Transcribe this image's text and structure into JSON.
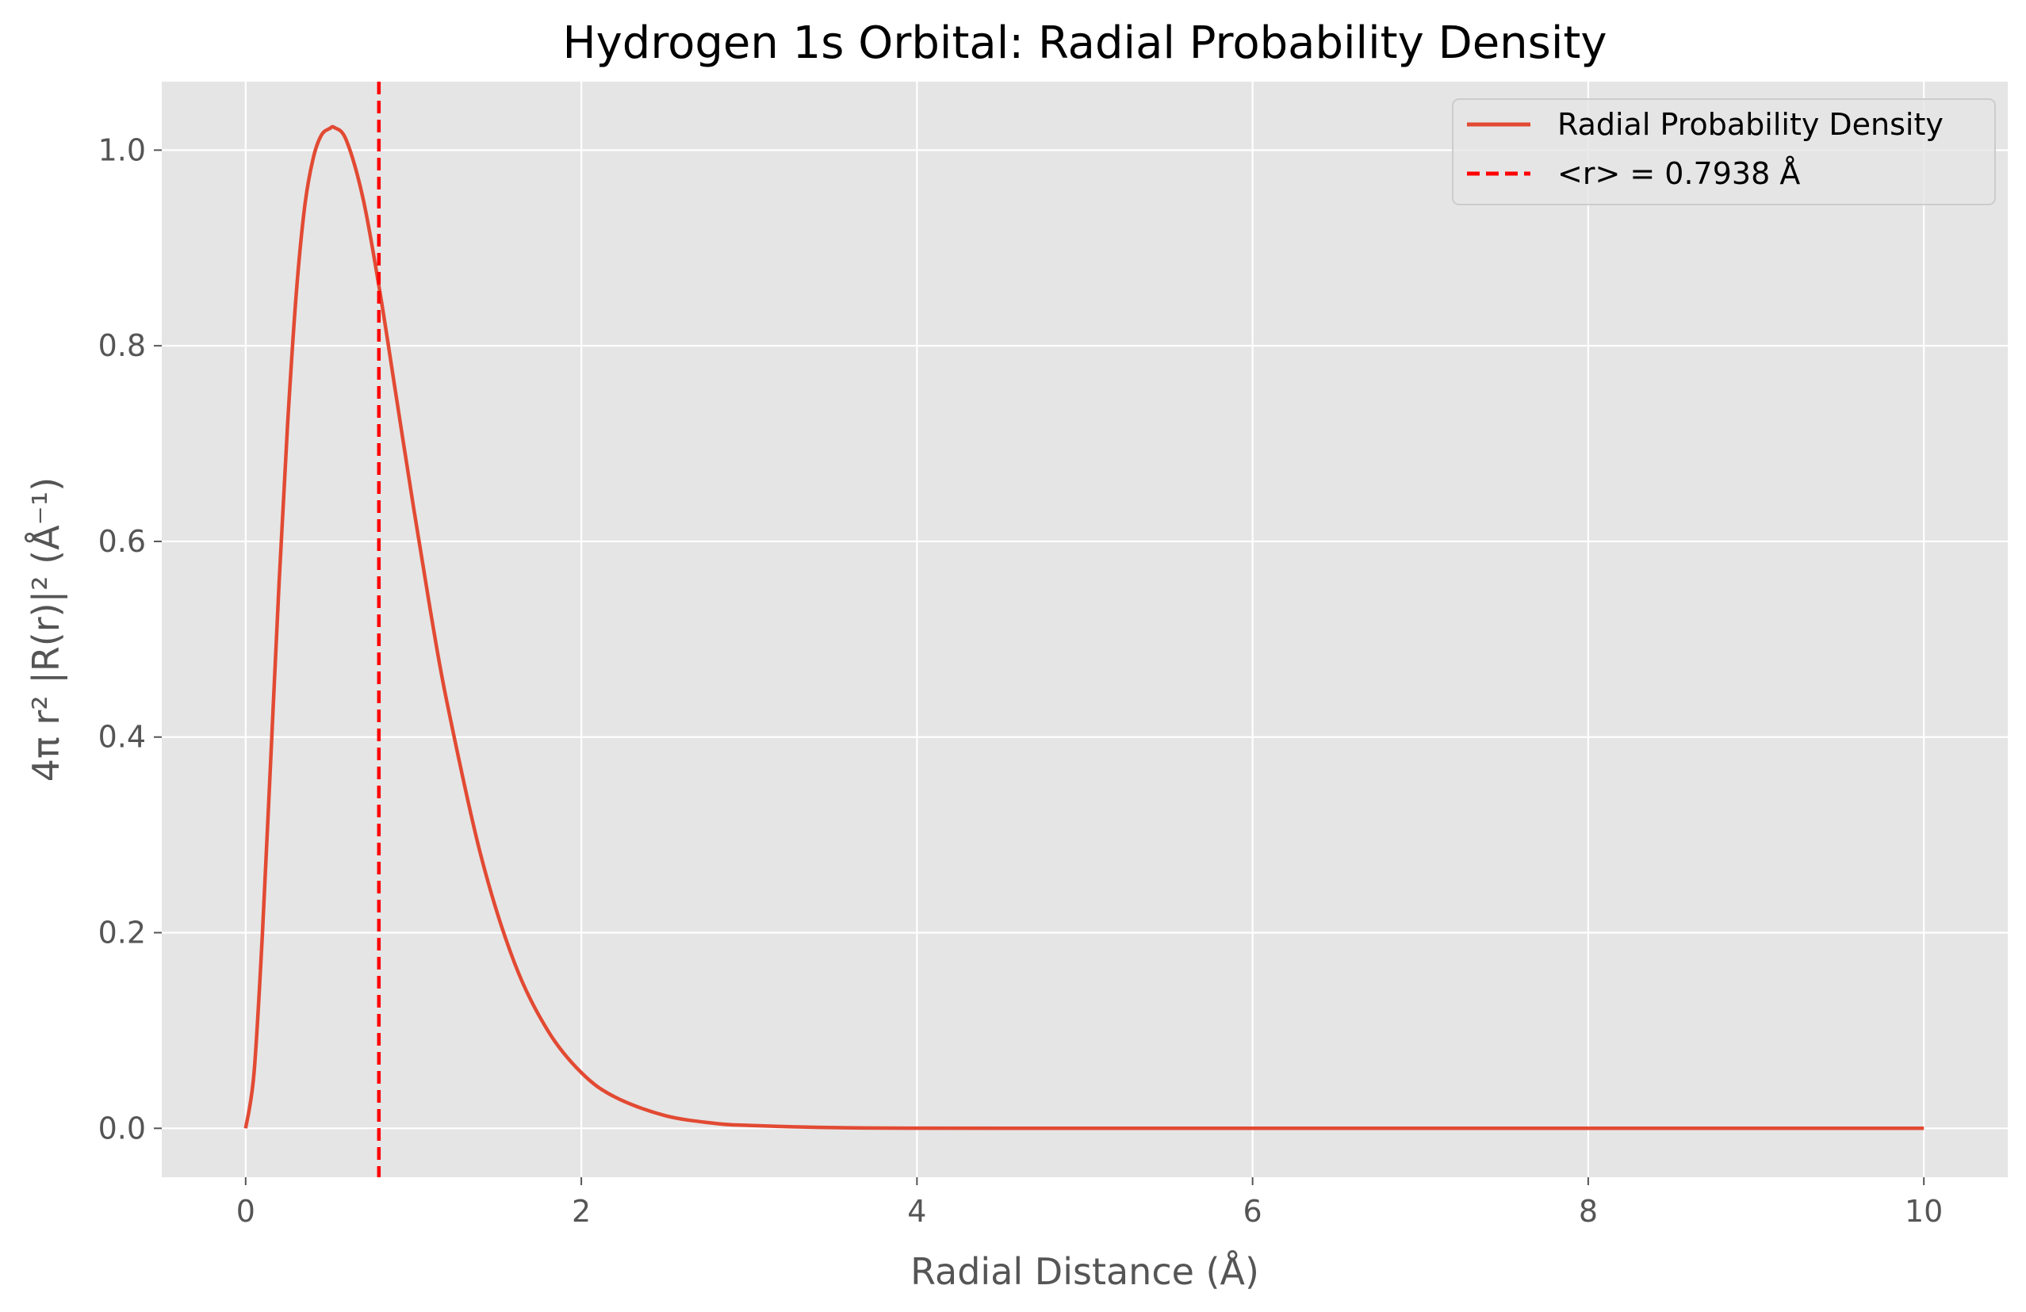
{
  "chart_data": {
    "type": "line",
    "title": "Hydrogen 1s Orbital: Radial Probability Density",
    "xlabel": "Radial Distance (Å)",
    "ylabel": "4π r² |R(r)|² (Å⁻¹)",
    "xlim": [
      -0.5,
      10.5
    ],
    "ylim": [
      -0.05,
      1.07
    ],
    "x_ticks": [
      0,
      2,
      4,
      6,
      8,
      10
    ],
    "x_tick_labels": [
      "0",
      "2",
      "4",
      "6",
      "8",
      "10"
    ],
    "y_ticks": [
      0.0,
      0.2,
      0.4,
      0.6,
      0.8,
      1.0
    ],
    "y_tick_labels": [
      "0.0",
      "0.2",
      "0.4",
      "0.6",
      "0.8",
      "1.0"
    ],
    "grid": true,
    "legend_position": "top-right",
    "series": [
      {
        "name": "Radial Probability Density",
        "style": "solid",
        "color": "#E24A33",
        "x": [
          0,
          0.05,
          0.1,
          0.15,
          0.2,
          0.25,
          0.3,
          0.35,
          0.4,
          0.45,
          0.5,
          0.53,
          0.6,
          0.7,
          0.8,
          0.9,
          1.0,
          1.1,
          1.2,
          1.4,
          1.6,
          1.8,
          2.0,
          2.2,
          2.5,
          2.8,
          3.0,
          3.5,
          4.0,
          5.0,
          6.0,
          7.0,
          8.0,
          9.0,
          10.0
        ],
        "y": [
          0.0,
          0.057,
          0.2,
          0.38,
          0.56,
          0.72,
          0.85,
          0.94,
          0.99,
          1.015,
          1.022,
          1.023,
          1.01,
          0.95,
          0.855,
          0.745,
          0.635,
          0.53,
          0.435,
          0.28,
          0.17,
          0.1,
          0.057,
          0.032,
          0.013,
          0.005,
          0.003,
          0.0007,
          0.00015,
          0.0,
          0.0,
          0.0,
          0.0,
          0.0,
          0.0
        ]
      },
      {
        "name": "<r> = 0.7938 Å",
        "style": "dashed",
        "color": "#FF0000",
        "x_value": 0.7938
      }
    ]
  },
  "colors": {
    "plot_background": "#E5E5E5",
    "grid": "#FFFFFF",
    "curve": "#E24A33",
    "vline": "#FF0000"
  }
}
